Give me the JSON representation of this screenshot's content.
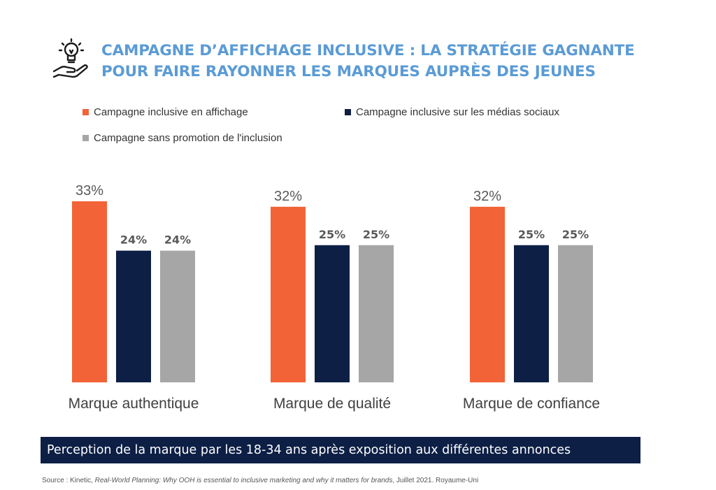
{
  "header": {
    "icon": "lightbulb-in-hand-icon",
    "title_line1": "CAMPAGNE D’AFFICHAGE INCLUSIVE : LA STRATÉGIE GAGNANTE",
    "title_line2": "POUR FAIRE RAYONNER LES MARQUES AUPRÈS DES JEUNES",
    "title_color": "#5b9bd5"
  },
  "legend": {
    "items": [
      {
        "label": "Campagne inclusive en affichage",
        "color": "#f26337"
      },
      {
        "label": "Campagne inclusive sur les médias sociaux",
        "color": "#0d1f45"
      },
      {
        "label": "Campagne sans promotion de l'inclusion",
        "color": "#a6a6a6"
      }
    ]
  },
  "chart_data": {
    "type": "bar",
    "categories": [
      "Marque authentique",
      "Marque de qualité",
      "Marque de confiance"
    ],
    "series": [
      {
        "name": "Campagne inclusive en affichage",
        "values": [
          33,
          32,
          32
        ],
        "color": "#f26337"
      },
      {
        "name": "Campagne inclusive sur les médias sociaux",
        "values": [
          24,
          25,
          25
        ],
        "color": "#0d1f45"
      },
      {
        "name": "Campagne sans promotion de l'inclusion",
        "values": [
          24,
          25,
          25
        ],
        "color": "#a6a6a6"
      }
    ],
    "data_labels": [
      [
        "33%",
        "24%",
        "24%"
      ],
      [
        "32%",
        "25%",
        "25%"
      ],
      [
        "32%",
        "25%",
        "25%"
      ]
    ],
    "unit": "%",
    "ylim": [
      0,
      40
    ],
    "grid": false,
    "legend_position": "top"
  },
  "banner": {
    "text": "Perception de la marque par les 18-34 ans après exposition aux différentes annonces",
    "color": "#0d1f45"
  },
  "source": {
    "prefix": "Source : Kinetic, ",
    "title": "Real-World Planning: Why OOH is essential to inclusive marketing and why it matters for brands",
    "suffix": ", Juillet 2021. Royaume-Uni"
  }
}
